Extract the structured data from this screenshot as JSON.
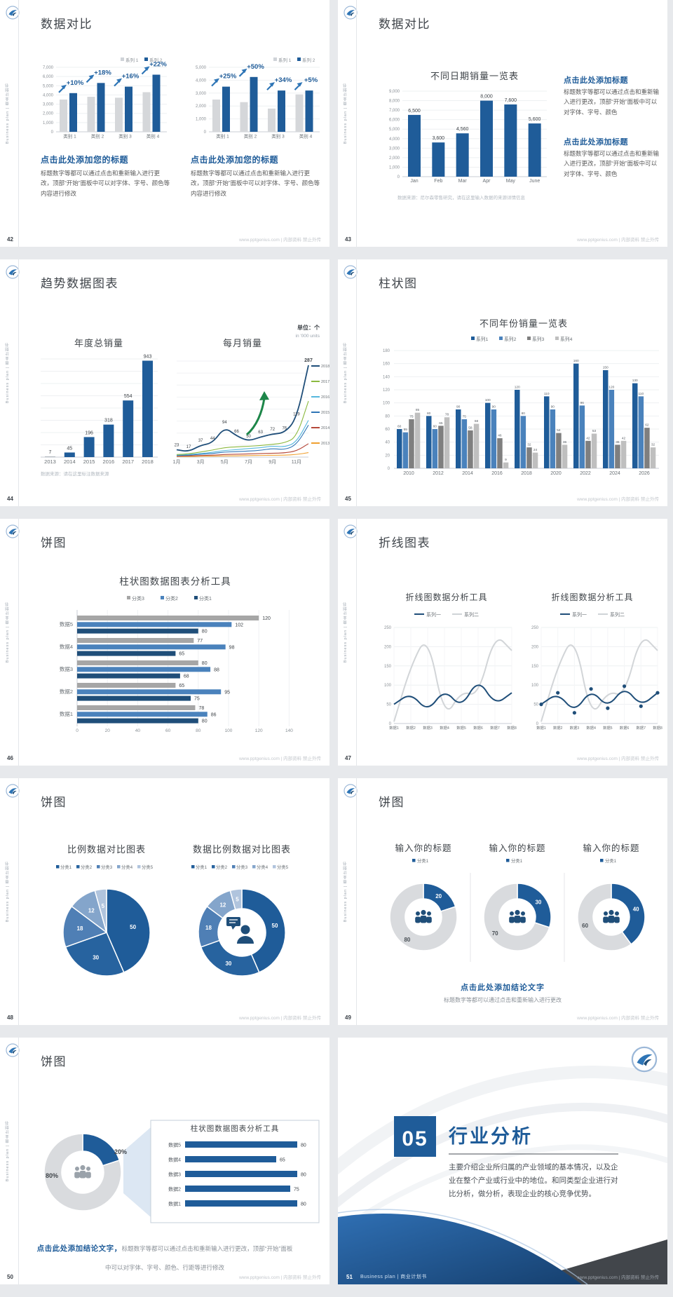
{
  "app": {
    "footer_right": "www.pptgenius.com | 内部资料 禁止外传",
    "sidebar_text": "Business plan | 商业计划书",
    "colors": {
      "primary_blue": "#1f5c99",
      "navy": "#1f4e79",
      "mid_blue": "#4a82bc",
      "gray_bar": "#d5d7da",
      "green_arrow": "#1d8649"
    }
  },
  "slides": [
    {
      "page": "42",
      "title": "数据对比",
      "type": "compare-bars",
      "legend": [
        "系列 1",
        "系列 2"
      ],
      "charts": [
        {
          "yticks": [
            "7,000",
            "6,000",
            "5,000",
            "4,000",
            "3,000",
            "2,000",
            "1,000",
            "0"
          ],
          "ymax": 7000,
          "categories": [
            "类别 1",
            "类别 2",
            "类别 3",
            "类别 4"
          ],
          "series": [
            {
              "name": "系列 1",
              "values": [
                3500,
                3800,
                3700,
                4300
              ]
            },
            {
              "name": "系列 2",
              "values": [
                4200,
                5300,
                4900,
                6200
              ]
            }
          ],
          "pct_labels": [
            "+10%",
            "+18%",
            "+16%",
            "+22%"
          ],
          "heading": "点击此处添加您的标题",
          "body": "标题数字等都可以通过点击和重新输入进行更改，顶部“开始”面板中可以对字体、字号、颜色等内容进行修改"
        },
        {
          "yticks": [
            "5,000",
            "4,000",
            "3,000",
            "2,000",
            "1,000",
            "0"
          ],
          "ymax": 5000,
          "categories": [
            "类别 1",
            "类别 2",
            "类别 3",
            "类别 4"
          ],
          "series": [
            {
              "name": "系列 1",
              "values": [
                2500,
                2300,
                1800,
                2900
              ]
            },
            {
              "name": "系列 2",
              "values": [
                3500,
                4250,
                3200,
                3200
              ]
            }
          ],
          "pct_labels": [
            "+25%",
            "+50%",
            "+34%",
            "+5%"
          ],
          "heading": "点击此处添加您的标题",
          "body": "标题数字等都可以通过点击和重新输入进行更改，顶部“开始”面板中可以对字体、字号、颜色等内容进行修改"
        }
      ]
    },
    {
      "page": "43",
      "title": "数据对比",
      "type": "bar-text",
      "chart_title": "不同日期销量一览表",
      "yticks": [
        "9,000",
        "8,000",
        "7,000",
        "6,000",
        "5,000",
        "4,000",
        "3,000",
        "2,000",
        "1,000",
        "0"
      ],
      "ymax": 9000,
      "categories": [
        "Jan",
        "Feb",
        "Mar",
        "Apr",
        "May",
        "June"
      ],
      "values": [
        6500,
        3600,
        4560,
        8000,
        7600,
        5600
      ],
      "value_labels": [
        "6,500",
        "3,600",
        "4,560",
        "8,000",
        "7,600",
        "5,600"
      ],
      "note": "数据来源：尼尔森零售研究，请在这里输入数据的来源详情信息",
      "blocks": [
        {
          "heading": "点击此处添加标题",
          "body": "标题数字等都可以通过点击和重新输入进行更改，顶部“开始”面板中可以对字体、字号、颜色"
        },
        {
          "heading": "点击此处添加标题",
          "body": "标题数字等都可以通过点击和重新输入进行更改，顶部“开始”面板中可以对字体、字号、颜色"
        }
      ]
    },
    {
      "page": "44",
      "title": "趋势数据图表",
      "type": "trend",
      "unit": "单位：个",
      "unit_sub": "in '000 units",
      "bar": {
        "chart_title": "年度总销量",
        "categories": [
          "2013",
          "2014",
          "2015",
          "2016",
          "2017",
          "2018"
        ],
        "values": [
          7,
          45,
          196,
          318,
          554,
          943
        ]
      },
      "line": {
        "chart_title": "每月销量",
        "x_labels": [
          "1月",
          "3月",
          "5月",
          "7月",
          "9月",
          "11月"
        ],
        "point_labels": [
          23,
          17,
          37,
          44,
          94,
          66,
          50,
          63,
          72,
          76,
          119,
          287
        ],
        "series": [
          {
            "name": "2018",
            "color": "#1f4e79",
            "values": [
              23,
              17,
              37,
              44,
              94,
              66,
              50,
              63,
              72,
              76,
              119,
              287
            ]
          },
          {
            "name": "2017",
            "color": "#8cb93f",
            "values": [
              8,
              10,
              16,
              22,
              30,
              32,
              34,
              36,
              40,
              44,
              62,
              175
            ]
          },
          {
            "name": "2016",
            "color": "#56b7dd",
            "values": [
              6,
              8,
              11,
              15,
              21,
              23,
              27,
              29,
              35,
              31,
              46,
              115
            ]
          },
          {
            "name": "2015",
            "color": "#2e75b6",
            "values": [
              5,
              6,
              9,
              11,
              16,
              17,
              19,
              21,
              27,
              23,
              38,
              100
            ]
          },
          {
            "name": "2014",
            "color": "#b5483a",
            "values": [
              3,
              4,
              5,
              6,
              8,
              9,
              10,
              11,
              12,
              13,
              19,
              42
            ]
          },
          {
            "name": "2013",
            "color": "#f0a030",
            "values": [
              2,
              2,
              3,
              3,
              4,
              4,
              5,
              5,
              6,
              6,
              8,
              14
            ]
          }
        ]
      },
      "note": "数据来源：请在这里标注数据来源"
    },
    {
      "page": "45",
      "title": "柱状图",
      "type": "grouped-bars",
      "chart_title": "不同年份销量一览表",
      "legend": [
        "系列1",
        "系列2",
        "系列3",
        "系列4"
      ],
      "colors": [
        "#1f5c99",
        "#4a82bc",
        "#7f7f7f",
        "#bfbfbf"
      ],
      "yticks": [
        "180",
        "160",
        "140",
        "120",
        "100",
        "80",
        "60",
        "40",
        "20",
        "0"
      ],
      "ymax": 180,
      "categories": [
        "2010",
        "2012",
        "2014",
        "2016",
        "2018",
        "2020",
        "2022",
        "2024",
        "2026"
      ],
      "series": [
        {
          "name": "系列1",
          "values": [
            60,
            80,
            90,
            100,
            120,
            110,
            160,
            150,
            130
          ]
        },
        {
          "name": "系列2",
          "values": [
            55,
            60,
            75,
            90,
            80,
            90,
            96,
            120,
            110
          ]
        },
        {
          "name": "系列3",
          "values": [
            75,
            65,
            58,
            46,
            32,
            54,
            42,
            36,
            62
          ]
        },
        {
          "name": "系列4",
          "values": [
            85,
            78,
            68,
            9,
            24,
            36,
            53,
            42,
            32
          ]
        }
      ]
    },
    {
      "page": "46",
      "title": "饼图",
      "type": "hbars",
      "chart_title": "柱状图数据图表分析工具",
      "legend": [
        "分类3",
        "分类2",
        "分类1"
      ],
      "colors": [
        "#a6a6a6",
        "#4a82bc",
        "#1f4e79"
      ],
      "categories": [
        "数据5",
        "数据4",
        "数据3",
        "数据2",
        "数据1"
      ],
      "rows": [
        [
          120,
          102,
          80
        ],
        [
          77,
          98,
          65
        ],
        [
          80,
          88,
          68
        ],
        [
          65,
          95,
          75
        ],
        [
          78,
          86,
          80
        ]
      ],
      "xticks": [
        "0",
        "20",
        "40",
        "60",
        "80",
        "100",
        "120",
        "140"
      ]
    },
    {
      "page": "47",
      "title": "折线图表",
      "type": "lines",
      "yticks": [
        "250",
        "200",
        "150",
        "100",
        "50",
        "0"
      ],
      "ymax": 250,
      "charts": [
        {
          "chart_title": "折线图数据分析工具",
          "legend": [
            "系列一",
            "系列二"
          ],
          "x_labels": [
            "数据1",
            "数据2",
            "数据3",
            "数据4",
            "数据5",
            "数据6",
            "数据7",
            "数据8"
          ],
          "series": [
            {
              "name": "系列一",
              "values": [
                50,
                80,
                30,
                90,
                40,
                118,
                48,
                80
              ]
            },
            {
              "name": "系列二",
              "values": [
                5,
                150,
                235,
                10,
                85,
                70,
                235,
                190
              ]
            }
          ],
          "markers": false
        },
        {
          "chart_title": "折线图数据分析工具",
          "legend": [
            "系列一",
            "系列二"
          ],
          "x_labels": [
            "数据1",
            "数据2",
            "数据3",
            "数据4",
            "数据5",
            "数据6",
            "数据7",
            "数据8"
          ],
          "series": [
            {
              "name": "系列一",
              "values": [
                50,
                80,
                28,
                90,
                40,
                97,
                45,
                80
              ]
            },
            {
              "name": "系列二",
              "values": [
                5,
                150,
                235,
                10,
                85,
                70,
                235,
                190
              ]
            }
          ],
          "markers": true
        }
      ]
    },
    {
      "page": "48",
      "title": "饼图",
      "type": "pies",
      "legend": [
        "分类1",
        "分类2",
        "分类3",
        "分类4",
        "分类5"
      ],
      "colors": [
        "#1f5c99",
        "#27639f",
        "#4f7fb5",
        "#84a5cb",
        "#b0c4dd"
      ],
      "values": [
        50,
        30,
        18,
        12,
        5
      ],
      "charts": [
        {
          "chart_title": "比例数据对比图表",
          "donut": false
        },
        {
          "chart_title": "数据比例数据对比图表",
          "donut": true
        }
      ]
    },
    {
      "page": "49",
      "title": "饼图",
      "type": "donut-trio",
      "panels": [
        {
          "chart_title": "输入你的标题",
          "legend": "分类1",
          "value": 20,
          "rest": 80
        },
        {
          "chart_title": "输入你的标题",
          "legend": "分类1",
          "value": 30,
          "rest": 70
        },
        {
          "chart_title": "输入你的标题",
          "legend": "分类1",
          "value": 40,
          "rest": 60
        }
      ],
      "conclusion": "点击此处添加结论文字",
      "conclusion_sub": "标题数字等都可以通过点击和重新输入进行更改"
    },
    {
      "page": "50",
      "title": "饼图",
      "type": "donut-bars",
      "donut": {
        "value": 20,
        "rest": 80,
        "value_label": "20%",
        "rest_label": "80%"
      },
      "box_title": "柱状图数据图表分析工具",
      "bars": [
        {
          "label": "数据5",
          "value": 80
        },
        {
          "label": "数据4",
          "value": 65
        },
        {
          "label": "数据3",
          "value": 80
        },
        {
          "label": "数据2",
          "value": 75
        },
        {
          "label": "数据1",
          "value": 80
        }
      ],
      "conclusion_bold": "点击此处添加结论文字，",
      "conclusion_rest": "标题数字等都可以通过点击和重新输入进行更改，顶部“开始”面板中可以对字体、字号、颜色、行距等进行修改"
    },
    {
      "page": "51",
      "type": "section",
      "number": "05",
      "section_title": "行业分析",
      "body": "主要介绍企业所归属的产业领域的基本情况，以及企业在整个产业或行业中的地位。和同类型企业进行对比分析，做分析，表现企业的核心竞争优势。",
      "footer_label": "Business plan | 商业计划书"
    }
  ]
}
